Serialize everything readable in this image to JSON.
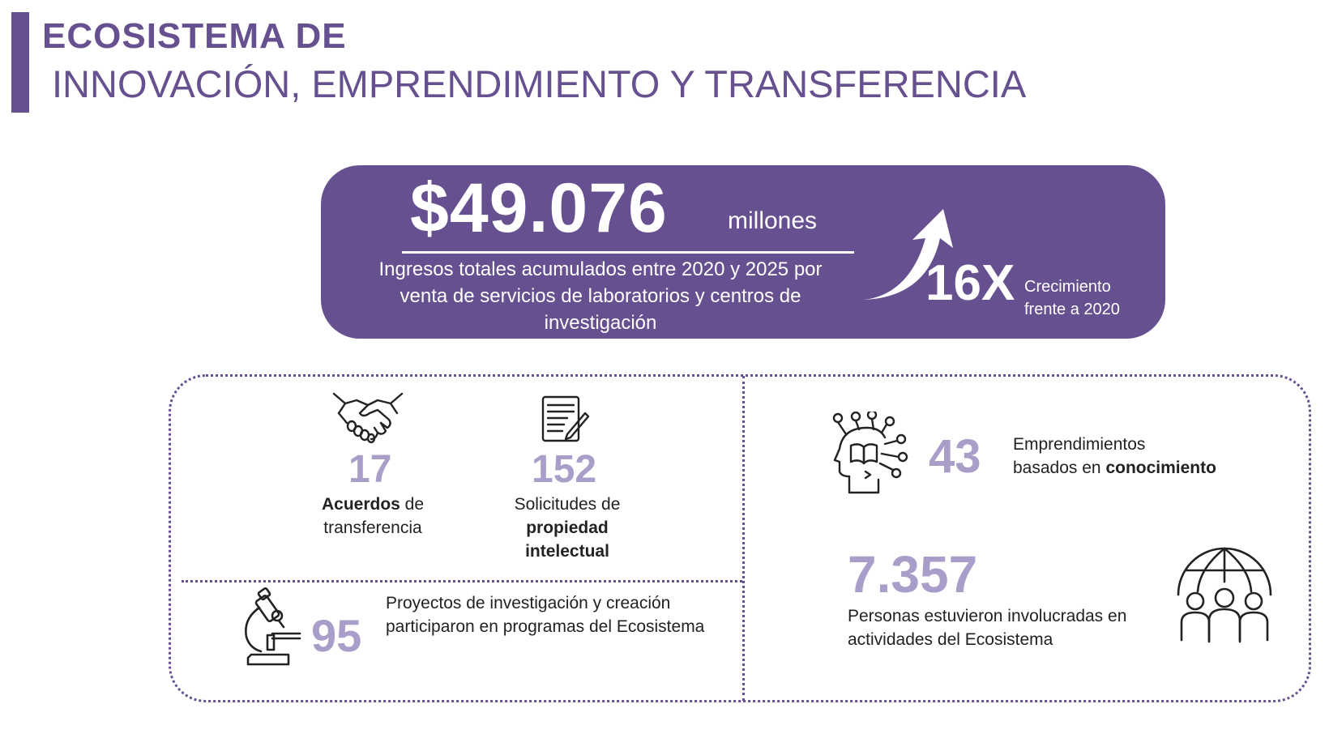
{
  "title": {
    "line1": "ECOSISTEMA DE",
    "line2": "INNOVACIÓN, EMPRENDIMIENTO Y TRANSFERENCIA"
  },
  "banner": {
    "amount": "$49.076",
    "unit": "millones",
    "description": "Ingresos totales acumulados entre 2020 y 2025 por venta de servicios de laboratorios y centros de investigación",
    "growth": "16X",
    "growth_label": "Crecimiento\nfrente a 2020"
  },
  "stats": {
    "agreements": {
      "value": "17",
      "bold": "Acuerdos",
      "rest": " de",
      "line2": "transferencia",
      "icon": "handshake-icon"
    },
    "ip": {
      "value": "152",
      "line1": "Solicitudes de",
      "bold1": "propiedad",
      "bold2": "intelectual",
      "icon": "document-pen-icon"
    },
    "projects": {
      "value": "95",
      "text": "Proyectos de investigación y creación participaron en programas del Ecosistema",
      "icon": "microscope-icon"
    },
    "startups": {
      "value": "43",
      "line1": "Emprendimientos",
      "line2_pre": "basados en ",
      "line2_bold": "conocimiento",
      "icon": "brain-head-icon"
    },
    "people": {
      "value": "7.357",
      "text": "Personas estuvieron involucradas en actividades del Ecosistema",
      "icon": "globe-people-icon"
    }
  },
  "colors": {
    "primary": "#67508f",
    "light": "#a99dc9",
    "text": "#222222"
  }
}
